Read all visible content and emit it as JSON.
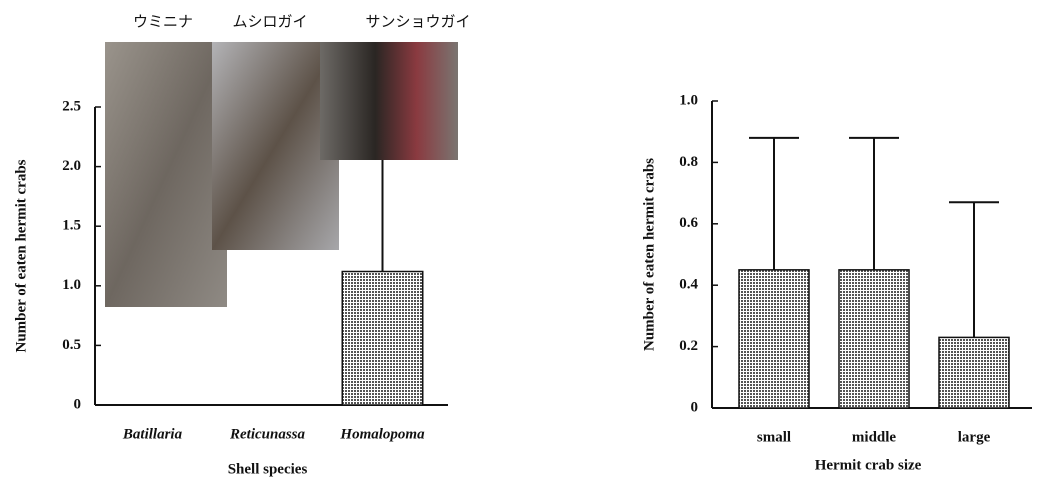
{
  "chart_data": [
    {
      "type": "bar",
      "annotations": [
        "ウミニナ",
        "ムシロガイ",
        "サンショウガイ"
      ],
      "y_label": "Number of eaten hermit crabs",
      "x_label": "Shell species",
      "categories": [
        "Batillaria",
        "Reticunassa",
        "Homalopoma"
      ],
      "values": [
        0,
        0,
        1.12
      ],
      "errors": [
        0,
        0,
        1.12
      ],
      "color": "#c8c8c8",
      "ylim": [
        0,
        2.5
      ],
      "yticks": [
        0,
        0.5,
        {
          "value": 1,
          "label": "1.0"
        },
        1.5,
        {
          "value": 2,
          "label": "2.0"
        },
        2.5
      ]
    },
    {
      "type": "bar",
      "y_label": "Number of eaten hermit crabs",
      "x_label": "Hermit crab size",
      "categories": [
        "small",
        "middle",
        "large"
      ],
      "values": [
        0.45,
        0.45,
        0.23
      ],
      "errors": [
        0.43,
        0.43,
        0.44
      ],
      "color": "#c8c8c8",
      "ylim": [
        0,
        1
      ],
      "yticks": [
        0,
        0.2,
        0.4,
        0.6,
        0.8,
        {
          "value": 1,
          "label": "1.0"
        }
      ]
    }
  ]
}
